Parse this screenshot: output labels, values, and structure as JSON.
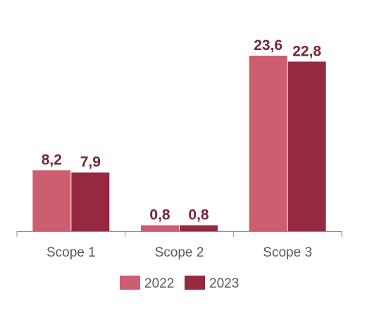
{
  "chart_data": {
    "type": "bar",
    "categories": [
      "Scope 1",
      "Scope 2",
      "Scope 3"
    ],
    "series": [
      {
        "name": "2022",
        "values": [
          8.2,
          0.8,
          23.6
        ],
        "labels": [
          "8,2",
          "0,8",
          "23,6"
        ],
        "color": "#cc5e70"
      },
      {
        "name": "2023",
        "values": [
          7.9,
          0.8,
          22.8
        ],
        "labels": [
          "7,9",
          "0,8",
          "22,8"
        ],
        "color": "#952941"
      }
    ],
    "label_color": "#7b2338",
    "axis_color": "#8c8c8c",
    "ylim": [
      0,
      23.6
    ],
    "legend_position": "bottom",
    "grid": false
  }
}
